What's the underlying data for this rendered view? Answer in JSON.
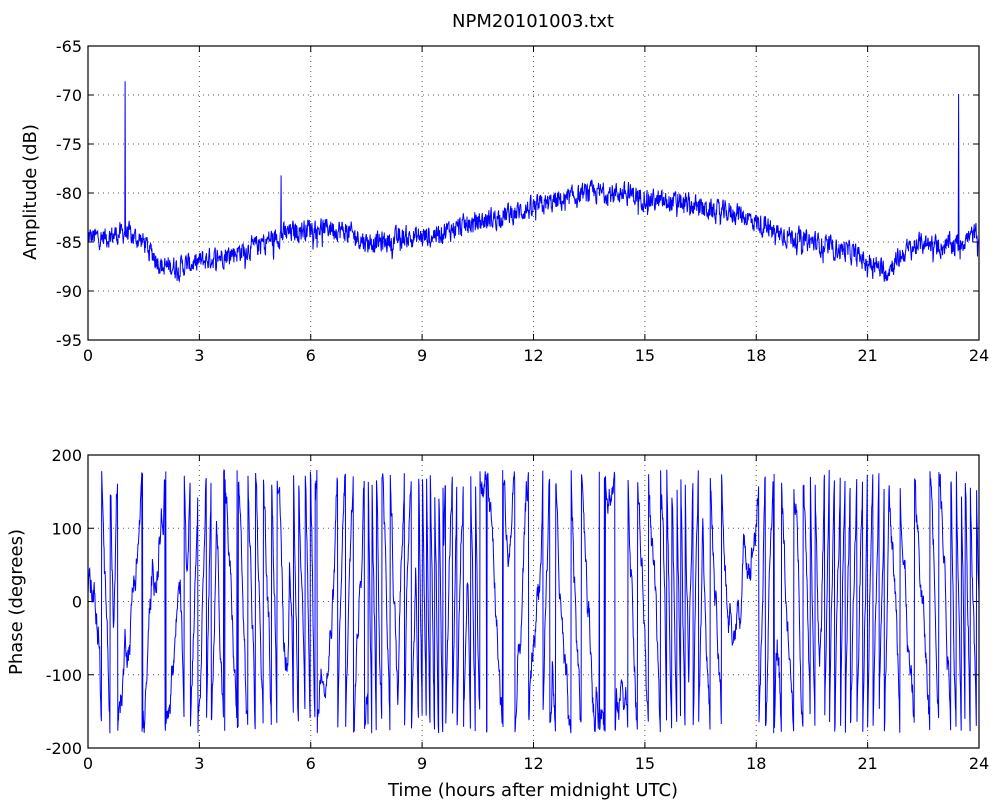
{
  "figure": {
    "title": "NPM20101003.txt"
  },
  "chart_data": [
    {
      "type": "line",
      "title": "NPM20101003.txt",
      "xlabel": "",
      "ylabel": "Amplitude (dB)",
      "xlim": [
        0,
        24
      ],
      "ylim": [
        -95,
        -65
      ],
      "x_ticks": [
        0,
        3,
        6,
        9,
        12,
        15,
        18,
        21,
        24
      ],
      "y_ticks": [
        -65,
        -70,
        -75,
        -80,
        -85,
        -90,
        -95
      ],
      "grid": true,
      "color": "#0000ff",
      "noise": 1.0,
      "spikes": [
        {
          "x": 1.0,
          "y": -68.6
        },
        {
          "x": 5.2,
          "y": -78.2
        },
        {
          "x": 23.45,
          "y": -69.9
        }
      ],
      "trend": {
        "x": [
          0,
          0.5,
          1,
          1.5,
          2,
          2.5,
          3,
          3.5,
          4,
          4.5,
          5,
          5.5,
          6,
          6.5,
          7,
          7.5,
          8,
          8.5,
          9,
          9.5,
          10,
          10.5,
          11,
          11.5,
          12,
          12.5,
          13,
          13.5,
          14,
          14.5,
          15,
          15.5,
          16,
          16.5,
          17,
          17.5,
          18,
          18.5,
          19,
          19.5,
          20,
          20.5,
          21,
          21.5,
          22,
          22.5,
          23,
          23.5,
          24
        ],
        "y": [
          -84.5,
          -84.5,
          -84.0,
          -85.0,
          -87.5,
          -87.5,
          -87.0,
          -86.5,
          -86.0,
          -85.5,
          -84.5,
          -84.0,
          -83.5,
          -83.5,
          -84.0,
          -85.0,
          -85.0,
          -84.5,
          -84.5,
          -84.0,
          -83.5,
          -83.0,
          -82.5,
          -82.0,
          -81.5,
          -81.0,
          -80.5,
          -80.0,
          -80.0,
          -80.0,
          -80.5,
          -81.0,
          -81.0,
          -81.5,
          -82.0,
          -82.0,
          -83.0,
          -84.0,
          -84.5,
          -85.0,
          -85.5,
          -86.0,
          -87.0,
          -88.0,
          -86.0,
          -85.0,
          -85.5,
          -85.0,
          -84.0
        ]
      }
    },
    {
      "type": "line",
      "title": "",
      "xlabel": "Time (hours after midnight UTC)",
      "ylabel": "Phase (degrees)",
      "xlim": [
        0,
        24
      ],
      "ylim": [
        -200,
        200
      ],
      "x_ticks": [
        0,
        3,
        6,
        9,
        12,
        15,
        18,
        21,
        24
      ],
      "y_ticks": [
        200,
        100,
        0,
        -100,
        -200
      ],
      "grid": true,
      "color": "#0000ff",
      "wrap_range": [
        -180,
        180
      ]
    }
  ]
}
